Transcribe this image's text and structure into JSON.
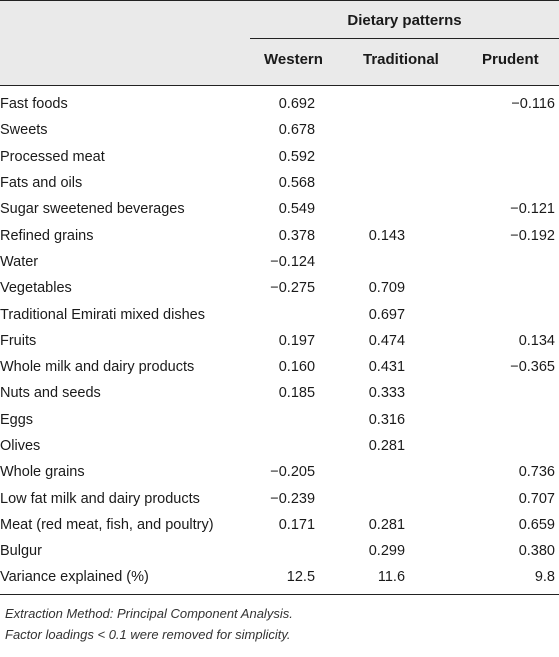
{
  "table": {
    "group_header": "Dietary patterns",
    "columns": [
      "Western",
      "Traditional",
      "Prudent"
    ],
    "rows": [
      {
        "label": "Fast foods",
        "western": "0.692",
        "traditional": "",
        "prudent": "−0.116"
      },
      {
        "label": "Sweets",
        "western": "0.678",
        "traditional": "",
        "prudent": ""
      },
      {
        "label": "Processed meat",
        "western": "0.592",
        "traditional": "",
        "prudent": ""
      },
      {
        "label": "Fats and oils",
        "western": "0.568",
        "traditional": "",
        "prudent": ""
      },
      {
        "label": "Sugar sweetened beverages",
        "western": "0.549",
        "traditional": "",
        "prudent": "−0.121"
      },
      {
        "label": "Refined grains",
        "western": "0.378",
        "traditional": "0.143",
        "prudent": "−0.192"
      },
      {
        "label": "Water",
        "western": "−0.124",
        "traditional": "",
        "prudent": ""
      },
      {
        "label": "Vegetables",
        "western": "−0.275",
        "traditional": "0.709",
        "prudent": ""
      },
      {
        "label": "Traditional Emirati mixed dishes",
        "western": "",
        "traditional": "0.697",
        "prudent": ""
      },
      {
        "label": "Fruits",
        "western": "0.197",
        "traditional": "0.474",
        "prudent": "0.134"
      },
      {
        "label": "Whole milk and dairy products",
        "western": "0.160",
        "traditional": "0.431",
        "prudent": "−0.365"
      },
      {
        "label": "Nuts and seeds",
        "western": "0.185",
        "traditional": "0.333",
        "prudent": ""
      },
      {
        "label": "Eggs",
        "western": "",
        "traditional": "0.316",
        "prudent": ""
      },
      {
        "label": "Olives",
        "western": "",
        "traditional": "0.281",
        "prudent": ""
      },
      {
        "label": "Whole grains",
        "western": "−0.205",
        "traditional": "",
        "prudent": "0.736"
      },
      {
        "label": "Low fat milk and dairy products",
        "western": "−0.239",
        "traditional": "",
        "prudent": "0.707"
      },
      {
        "label": "Meat (red meat, fish, and poultry)",
        "western": "0.171",
        "traditional": "0.281",
        "prudent": "0.659"
      },
      {
        "label": "Bulgur",
        "western": "",
        "traditional": "0.299",
        "prudent": "0.380"
      },
      {
        "label": "Variance explained (%)",
        "western": "12.5",
        "traditional": "11.6",
        "prudent": "9.8"
      }
    ]
  },
  "footnotes": [
    "Extraction Method: Principal Component Analysis.",
    "Factor loadings < 0.1 were removed for simplicity."
  ]
}
